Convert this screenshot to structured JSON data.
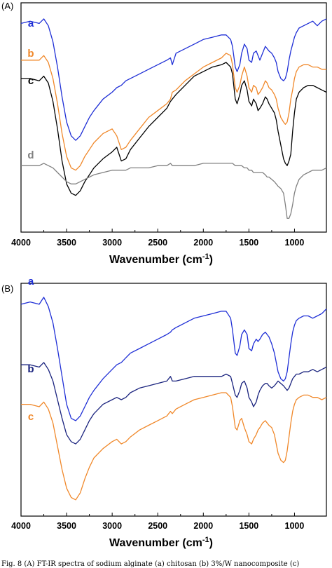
{
  "chart_data": [
    {
      "type": "line",
      "panel_label": "(A)",
      "title": "",
      "xlabel": "Wavenumber (cm-1)",
      "xlabel_main": "Wavenumber (cm",
      "xlabel_sup": "-1",
      "xlabel_close": ")",
      "ylabel": "",
      "xlim": [
        4000,
        650
      ],
      "x_reversed": true,
      "x_ticks": [
        4000,
        3500,
        3000,
        2500,
        2000,
        1500,
        1000
      ],
      "x_tick_labels": [
        "4000",
        "3500",
        "3000",
        "2500",
        "2000",
        "1500",
        "1000"
      ],
      "ylim": [
        0,
        100
      ],
      "y_ticks_shown": false,
      "grid": false,
      "legend": "inline letters at left of each curve",
      "x": [
        4000,
        3900,
        3800,
        3750,
        3700,
        3650,
        3600,
        3550,
        3500,
        3450,
        3400,
        3350,
        3300,
        3250,
        3200,
        3100,
        3000,
        2950,
        2900,
        2850,
        2800,
        2700,
        2600,
        2500,
        2400,
        2360,
        2340,
        2300,
        2200,
        2100,
        2000,
        1900,
        1800,
        1750,
        1700,
        1680,
        1650,
        1630,
        1600,
        1580,
        1550,
        1520,
        1500,
        1470,
        1450,
        1420,
        1400,
        1380,
        1350,
        1320,
        1300,
        1280,
        1250,
        1220,
        1200,
        1180,
        1150,
        1120,
        1100,
        1080,
        1060,
        1040,
        1020,
        1000,
        980,
        950,
        900,
        850,
        800,
        750,
        700,
        650
      ],
      "series": [
        {
          "name": "a",
          "color": "#1f2fd6",
          "values": [
            91,
            92,
            91,
            93,
            90,
            83,
            72,
            59,
            48,
            42,
            40,
            42,
            46,
            50,
            53,
            58,
            61,
            63,
            64,
            66,
            67,
            69,
            71,
            73,
            75,
            76,
            73,
            78,
            80,
            82,
            84,
            85,
            86,
            86,
            84,
            81,
            72,
            70,
            73,
            78,
            82,
            80,
            75,
            74,
            78,
            79,
            77,
            75,
            78,
            81,
            80,
            79,
            78,
            76,
            74,
            70,
            67,
            66,
            67,
            70,
            75,
            79,
            82,
            85,
            87,
            89,
            90,
            91,
            92,
            90,
            92,
            93
          ]
        },
        {
          "name": "b",
          "color": "#f0882a",
          "values": [
            75,
            75,
            75,
            77,
            74,
            67,
            56,
            43,
            33,
            28,
            27,
            29,
            33,
            36,
            39,
            43,
            45,
            42,
            36,
            37,
            40,
            45,
            50,
            53,
            56,
            58,
            61,
            62,
            66,
            69,
            72,
            74,
            76,
            78,
            77,
            73,
            63,
            61,
            64,
            68,
            72,
            68,
            63,
            61,
            64,
            63,
            60,
            61,
            63,
            66,
            65,
            63,
            62,
            60,
            58,
            54,
            50,
            48,
            47,
            48,
            52,
            58,
            62,
            67,
            70,
            72,
            73,
            73,
            72,
            72,
            71,
            71
          ]
        },
        {
          "name": "c",
          "color": "#000000",
          "values": [
            67,
            67,
            66,
            68,
            65,
            57,
            45,
            31,
            21,
            17,
            16,
            18,
            22,
            25,
            28,
            32,
            35,
            37,
            31,
            32,
            36,
            41,
            46,
            50,
            54,
            57,
            58,
            60,
            64,
            68,
            70,
            72,
            73,
            74,
            72,
            69,
            58,
            56,
            60,
            64,
            66,
            62,
            57,
            55,
            58,
            56,
            53,
            54,
            56,
            59,
            58,
            56,
            54,
            52,
            49,
            44,
            38,
            32,
            30,
            29,
            31,
            34,
            44,
            52,
            58,
            61,
            63,
            64,
            64,
            63,
            62,
            61
          ]
        },
        {
          "name": "d",
          "color": "#808080",
          "values": [
            29,
            29,
            29,
            30,
            29,
            28,
            26,
            24,
            22,
            21,
            21,
            22,
            23,
            24,
            25,
            26,
            27,
            27,
            27,
            27,
            28,
            28,
            28,
            29,
            29,
            30,
            29,
            29,
            29,
            29,
            30,
            30,
            30,
            30,
            30,
            30,
            29,
            29,
            29,
            29,
            28,
            28,
            27,
            27,
            26,
            26,
            26,
            26,
            26,
            25,
            24,
            24,
            23,
            22,
            21,
            20,
            19,
            17,
            12,
            6,
            6,
            8,
            12,
            17,
            20,
            23,
            25,
            26,
            27,
            27,
            27,
            28
          ]
        }
      ]
    },
    {
      "type": "line",
      "panel_label": "(B)",
      "title": "",
      "xlabel": "Wavenumber (cm-1)",
      "xlabel_main": "Wavenumber (cm",
      "xlabel_sup": "-1",
      "xlabel_close": ")",
      "ylabel": "",
      "xlim": [
        4000,
        650
      ],
      "x_reversed": true,
      "x_ticks": [
        4000,
        3500,
        3000,
        2500,
        2000,
        1500,
        1000
      ],
      "x_tick_labels": [
        "4000",
        "3500",
        "3000",
        "2500",
        "2000",
        "1500",
        "1000"
      ],
      "ylim": [
        0,
        100
      ],
      "y_ticks_shown": false,
      "grid": false,
      "legend": "inline letters at left of each curve",
      "x": [
        4000,
        3900,
        3800,
        3750,
        3700,
        3650,
        3600,
        3550,
        3500,
        3450,
        3400,
        3350,
        3300,
        3250,
        3200,
        3100,
        3000,
        2950,
        2900,
        2850,
        2800,
        2700,
        2600,
        2500,
        2400,
        2360,
        2340,
        2300,
        2200,
        2100,
        2000,
        1900,
        1800,
        1750,
        1700,
        1680,
        1650,
        1630,
        1600,
        1580,
        1550,
        1520,
        1500,
        1470,
        1450,
        1420,
        1400,
        1380,
        1350,
        1320,
        1300,
        1280,
        1250,
        1220,
        1200,
        1180,
        1150,
        1120,
        1100,
        1080,
        1060,
        1040,
        1020,
        1000,
        980,
        950,
        900,
        850,
        800,
        750,
        700,
        650
      ],
      "series": [
        {
          "name": "a",
          "color": "#1f2fd6",
          "values": [
            91,
            92,
            91,
            94,
            90,
            83,
            72,
            60,
            48,
            42,
            41,
            43,
            47,
            51,
            54,
            59,
            63,
            65,
            66,
            68,
            70,
            72,
            74,
            76,
            78,
            79,
            80,
            81,
            83,
            85,
            86,
            87,
            88,
            88,
            85,
            80,
            70,
            69,
            73,
            78,
            80,
            78,
            72,
            71,
            74,
            76,
            75,
            76,
            78,
            79,
            78,
            77,
            74,
            70,
            66,
            62,
            59,
            58,
            59,
            62,
            68,
            74,
            79,
            82,
            84,
            85,
            86,
            86,
            85,
            86,
            87,
            89
          ]
        },
        {
          "name": "b",
          "color": "#1a237e",
          "values": [
            65,
            65,
            64,
            66,
            63,
            58,
            50,
            42,
            35,
            32,
            31,
            33,
            37,
            41,
            44,
            48,
            50,
            51,
            50,
            51,
            53,
            55,
            56,
            57,
            58,
            60,
            58,
            58,
            59,
            60,
            60,
            60,
            60,
            61,
            60,
            57,
            52,
            51,
            54,
            57,
            58,
            55,
            51,
            49,
            47,
            49,
            52,
            54,
            56,
            57,
            57,
            56,
            55,
            56,
            57,
            58,
            57,
            56,
            55,
            54,
            55,
            57,
            59,
            60,
            61,
            61,
            62,
            62,
            63,
            62,
            63,
            64
          ]
        },
        {
          "name": "c",
          "color": "#f0882a",
          "values": [
            48,
            48,
            47,
            49,
            46,
            40,
            30,
            20,
            12,
            8,
            7,
            10,
            16,
            21,
            25,
            29,
            32,
            33,
            31,
            32,
            34,
            37,
            39,
            41,
            43,
            45,
            44,
            46,
            48,
            50,
            51,
            52,
            53,
            53,
            51,
            47,
            38,
            37,
            41,
            42,
            38,
            35,
            32,
            31,
            33,
            35,
            37,
            38,
            40,
            41,
            40,
            39,
            38,
            35,
            31,
            27,
            24,
            23,
            24,
            28,
            34,
            40,
            45,
            48,
            50,
            51,
            52,
            52,
            51,
            51,
            50,
            51
          ]
        }
      ]
    }
  ],
  "caption_fragment": "Fig. 8 (A) FT-IR spectra of sodium alginate (a) chitosan (b) 3%/W nanocomposite (c)"
}
